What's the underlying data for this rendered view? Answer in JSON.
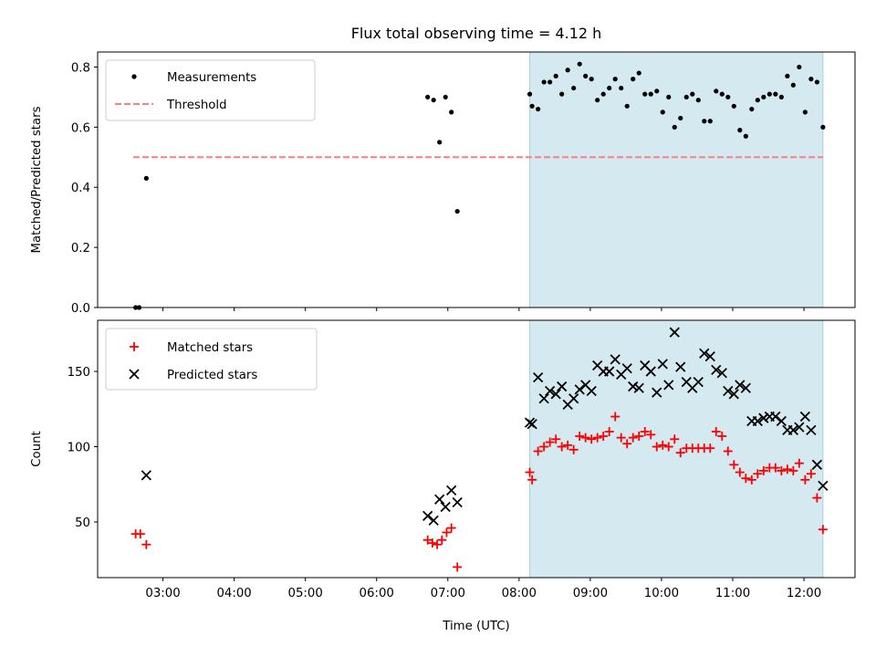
{
  "title": "Flux total observing time = 4.12 h",
  "x_ticks": [
    "03:00",
    "04:00",
    "05:00",
    "06:00",
    "07:00",
    "08:00",
    "09:00",
    "10:00",
    "11:00",
    "12:00"
  ],
  "shaded_range": [
    "08:09",
    "12:16"
  ],
  "shade_color": "#d4eaf0",
  "chart_data": [
    {
      "type": "scatter",
      "xlabel": "",
      "ylabel": "Matched/Predicted stars",
      "xlim": [
        "02:05",
        "12:43"
      ],
      "ylim": [
        0,
        0.85
      ],
      "yticks": [
        "0.0",
        "0.2",
        "0.4",
        "0.6",
        "0.8"
      ],
      "legend_position": "top-left",
      "series": [
        {
          "name": "Measurements",
          "marker": "dot",
          "color": "#000000",
          "points": [
            [
              "02:37",
              0.0
            ],
            [
              "02:40",
              0.0
            ],
            [
              "02:46",
              0.43
            ],
            [
              "06:43",
              0.7
            ],
            [
              "06:48",
              0.69
            ],
            [
              "06:53",
              0.55
            ],
            [
              "06:58",
              0.7
            ],
            [
              "07:03",
              0.65
            ],
            [
              "07:08",
              0.32
            ],
            [
              "08:09",
              0.71
            ],
            [
              "08:11",
              0.67
            ],
            [
              "08:16",
              0.66
            ],
            [
              "08:21",
              0.75
            ],
            [
              "08:26",
              0.75
            ],
            [
              "08:31",
              0.77
            ],
            [
              "08:36",
              0.71
            ],
            [
              "08:41",
              0.79
            ],
            [
              "08:46",
              0.73
            ],
            [
              "08:51",
              0.81
            ],
            [
              "08:56",
              0.77
            ],
            [
              "09:01",
              0.76
            ],
            [
              "09:06",
              0.69
            ],
            [
              "09:11",
              0.71
            ],
            [
              "09:16",
              0.73
            ],
            [
              "09:21",
              0.76
            ],
            [
              "09:26",
              0.73
            ],
            [
              "09:31",
              0.67
            ],
            [
              "09:36",
              0.76
            ],
            [
              "09:41",
              0.78
            ],
            [
              "09:46",
              0.71
            ],
            [
              "09:51",
              0.71
            ],
            [
              "09:56",
              0.72
            ],
            [
              "10:01",
              0.65
            ],
            [
              "10:06",
              0.7
            ],
            [
              "10:11",
              0.6
            ],
            [
              "10:16",
              0.63
            ],
            [
              "10:21",
              0.7
            ],
            [
              "10:26",
              0.71
            ],
            [
              "10:31",
              0.69
            ],
            [
              "10:36",
              0.62
            ],
            [
              "10:41",
              0.62
            ],
            [
              "10:46",
              0.72
            ],
            [
              "10:51",
              0.71
            ],
            [
              "10:56",
              0.7
            ],
            [
              "11:01",
              0.67
            ],
            [
              "11:06",
              0.59
            ],
            [
              "11:11",
              0.57
            ],
            [
              "11:16",
              0.66
            ],
            [
              "11:21",
              0.69
            ],
            [
              "11:26",
              0.7
            ],
            [
              "11:31",
              0.71
            ],
            [
              "11:36",
              0.71
            ],
            [
              "11:41",
              0.7
            ],
            [
              "11:46",
              0.77
            ],
            [
              "11:51",
              0.74
            ],
            [
              "11:56",
              0.8
            ],
            [
              "12:01",
              0.65
            ],
            [
              "12:06",
              0.76
            ],
            [
              "12:11",
              0.75
            ],
            [
              "12:16",
              0.6
            ]
          ]
        },
        {
          "name": "Threshold",
          "type": "line",
          "style": "dashed",
          "color": "#ff7f7f",
          "points": [
            [
              "02:35",
              0.5
            ],
            [
              "12:16",
              0.5
            ]
          ]
        }
      ]
    },
    {
      "type": "scatter",
      "xlabel": "Time (UTC)",
      "ylabel": "Count",
      "xlim": [
        "02:05",
        "12:43"
      ],
      "ylim": [
        13,
        184
      ],
      "yticks": [
        "50",
        "100",
        "150"
      ],
      "legend_position": "top-left",
      "series": [
        {
          "name": "Matched stars",
          "marker": "plus",
          "color": "#ff0000",
          "points": [
            [
              "02:37",
              42
            ],
            [
              "02:41",
              42
            ],
            [
              "02:46",
              35
            ],
            [
              "06:43",
              38
            ],
            [
              "06:47",
              36
            ],
            [
              "06:51",
              35
            ],
            [
              "06:55",
              38
            ],
            [
              "06:59",
              43
            ],
            [
              "07:03",
              46
            ],
            [
              "07:08",
              20
            ],
            [
              "08:09",
              83
            ],
            [
              "08:11",
              78
            ],
            [
              "08:16",
              97
            ],
            [
              "08:21",
              100
            ],
            [
              "08:26",
              103
            ],
            [
              "08:31",
              105
            ],
            [
              "08:36",
              100
            ],
            [
              "08:41",
              101
            ],
            [
              "08:46",
              98
            ],
            [
              "08:51",
              107
            ],
            [
              "08:56",
              106
            ],
            [
              "09:01",
              105
            ],
            [
              "09:06",
              106
            ],
            [
              "09:11",
              107
            ],
            [
              "09:16",
              110
            ],
            [
              "09:21",
              120
            ],
            [
              "09:26",
              106
            ],
            [
              "09:31",
              102
            ],
            [
              "09:36",
              106
            ],
            [
              "09:41",
              107
            ],
            [
              "09:46",
              110
            ],
            [
              "09:51",
              108
            ],
            [
              "09:56",
              100
            ],
            [
              "10:01",
              101
            ],
            [
              "10:06",
              100
            ],
            [
              "10:11",
              105
            ],
            [
              "10:16",
              96
            ],
            [
              "10:21",
              99
            ],
            [
              "10:26",
              99
            ],
            [
              "10:31",
              99
            ],
            [
              "10:36",
              99
            ],
            [
              "10:41",
              99
            ],
            [
              "10:46",
              110
            ],
            [
              "10:51",
              107
            ],
            [
              "10:56",
              97
            ],
            [
              "11:01",
              88
            ],
            [
              "11:06",
              83
            ],
            [
              "11:11",
              79
            ],
            [
              "11:16",
              78
            ],
            [
              "11:21",
              82
            ],
            [
              "11:26",
              84
            ],
            [
              "11:31",
              86
            ],
            [
              "11:36",
              86
            ],
            [
              "11:41",
              84
            ],
            [
              "11:46",
              85
            ],
            [
              "11:51",
              84
            ],
            [
              "11:56",
              89
            ],
            [
              "12:01",
              78
            ],
            [
              "12:06",
              82
            ],
            [
              "12:11",
              66
            ],
            [
              "12:16",
              45
            ]
          ]
        },
        {
          "name": "Predicted stars",
          "marker": "x",
          "color": "#000000",
          "points": [
            [
              "02:46",
              81
            ],
            [
              "06:43",
              54
            ],
            [
              "06:48",
              51
            ],
            [
              "06:53",
              65
            ],
            [
              "06:58",
              60
            ],
            [
              "07:03",
              71
            ],
            [
              "07:08",
              63
            ],
            [
              "08:09",
              116
            ],
            [
              "08:11",
              115
            ],
            [
              "08:16",
              146
            ],
            [
              "08:21",
              132
            ],
            [
              "08:26",
              137
            ],
            [
              "08:31",
              135
            ],
            [
              "08:36",
              140
            ],
            [
              "08:41",
              128
            ],
            [
              "08:46",
              132
            ],
            [
              "08:51",
              138
            ],
            [
              "08:56",
              141
            ],
            [
              "09:01",
              137
            ],
            [
              "09:06",
              154
            ],
            [
              "09:11",
              150
            ],
            [
              "09:16",
              150
            ],
            [
              "09:21",
              158
            ],
            [
              "09:26",
              148
            ],
            [
              "09:31",
              152
            ],
            [
              "09:36",
              140
            ],
            [
              "09:41",
              139
            ],
            [
              "09:46",
              154
            ],
            [
              "09:51",
              150
            ],
            [
              "09:56",
              136
            ],
            [
              "10:01",
              155
            ],
            [
              "10:06",
              141
            ],
            [
              "10:11",
              176
            ],
            [
              "10:16",
              153
            ],
            [
              "10:21",
              143
            ],
            [
              "10:26",
              139
            ],
            [
              "10:31",
              143
            ],
            [
              "10:36",
              162
            ],
            [
              "10:41",
              160
            ],
            [
              "10:46",
              151
            ],
            [
              "10:51",
              149
            ],
            [
              "10:56",
              137
            ],
            [
              "11:01",
              135
            ],
            [
              "11:06",
              141
            ],
            [
              "11:11",
              139
            ],
            [
              "11:16",
              117
            ],
            [
              "11:21",
              117
            ],
            [
              "11:26",
              119
            ],
            [
              "11:31",
              120
            ],
            [
              "11:36",
              120
            ],
            [
              "11:41",
              117
            ],
            [
              "11:46",
              111
            ],
            [
              "11:51",
              111
            ],
            [
              "11:56",
              113
            ],
            [
              "12:01",
              120
            ],
            [
              "12:06",
              111
            ],
            [
              "12:11",
              88
            ],
            [
              "12:16",
              74
            ]
          ]
        }
      ]
    }
  ]
}
